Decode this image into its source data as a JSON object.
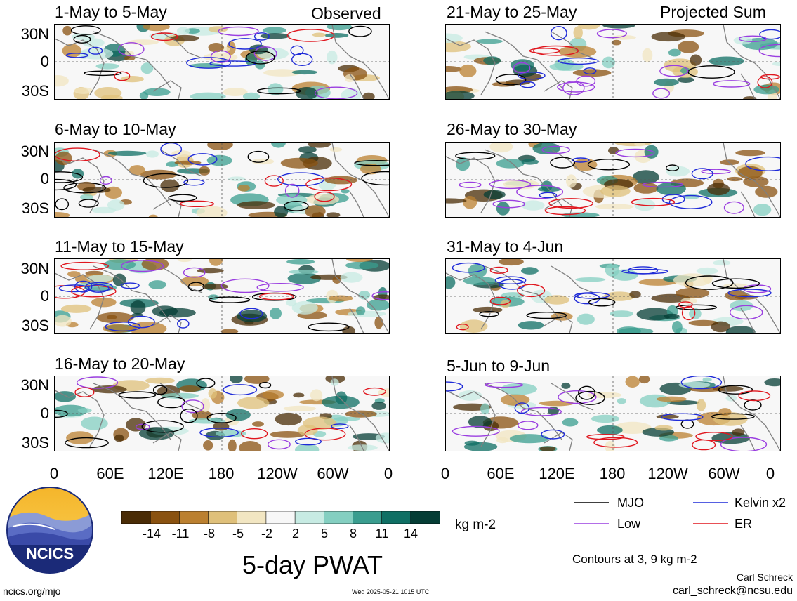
{
  "figure": {
    "title": "5-day PWAT",
    "units": "kg m-2",
    "contour_note": "Contours at 3, 9 kg m-2",
    "author": "Carl Schreck",
    "email": "carl_schreck@ncsu.edu",
    "url": "ncics.org/mjo",
    "timestamp": "Wed 2025-05-21 1015 UTC",
    "logo_text": "NCICS"
  },
  "columns": {
    "left_label": "Observed",
    "right_label": "Projected Sum"
  },
  "panels": [
    {
      "title": "1-May to 5-May"
    },
    {
      "title": "6-May to 10-May"
    },
    {
      "title": "11-May to 15-May"
    },
    {
      "title": "16-May to 20-May"
    },
    {
      "title": "21-May to 25-May"
    },
    {
      "title": "26-May to 30-May"
    },
    {
      "title": "31-May to 4-Jun"
    },
    {
      "title": "5-Jun to 9-Jun"
    }
  ],
  "axes": {
    "lat_labels": [
      "30N",
      "0",
      "30S"
    ],
    "lon_labels": [
      "0",
      "60E",
      "120E",
      "180",
      "120W",
      "60W",
      "0"
    ]
  },
  "colorbar": {
    "ticks": [
      "-14",
      "-11",
      "-8",
      "-5",
      "-2",
      "2",
      "5",
      "8",
      "11",
      "14"
    ],
    "colors": [
      "#4a2c06",
      "#8a5210",
      "#bb8030",
      "#dfc07a",
      "#f2e6c2",
      "#f7f7f7",
      "#c7ebe3",
      "#84cfc1",
      "#3a9d8f",
      "#0f6f64",
      "#053d35"
    ]
  },
  "legend": [
    {
      "label": "MJO",
      "color": "#000000"
    },
    {
      "label": "Kelvin x2",
      "color": "#1f2bd8"
    },
    {
      "label": "Low",
      "color": "#9a3ee0"
    },
    {
      "label": "ER",
      "color": "#e0161e"
    }
  ]
}
